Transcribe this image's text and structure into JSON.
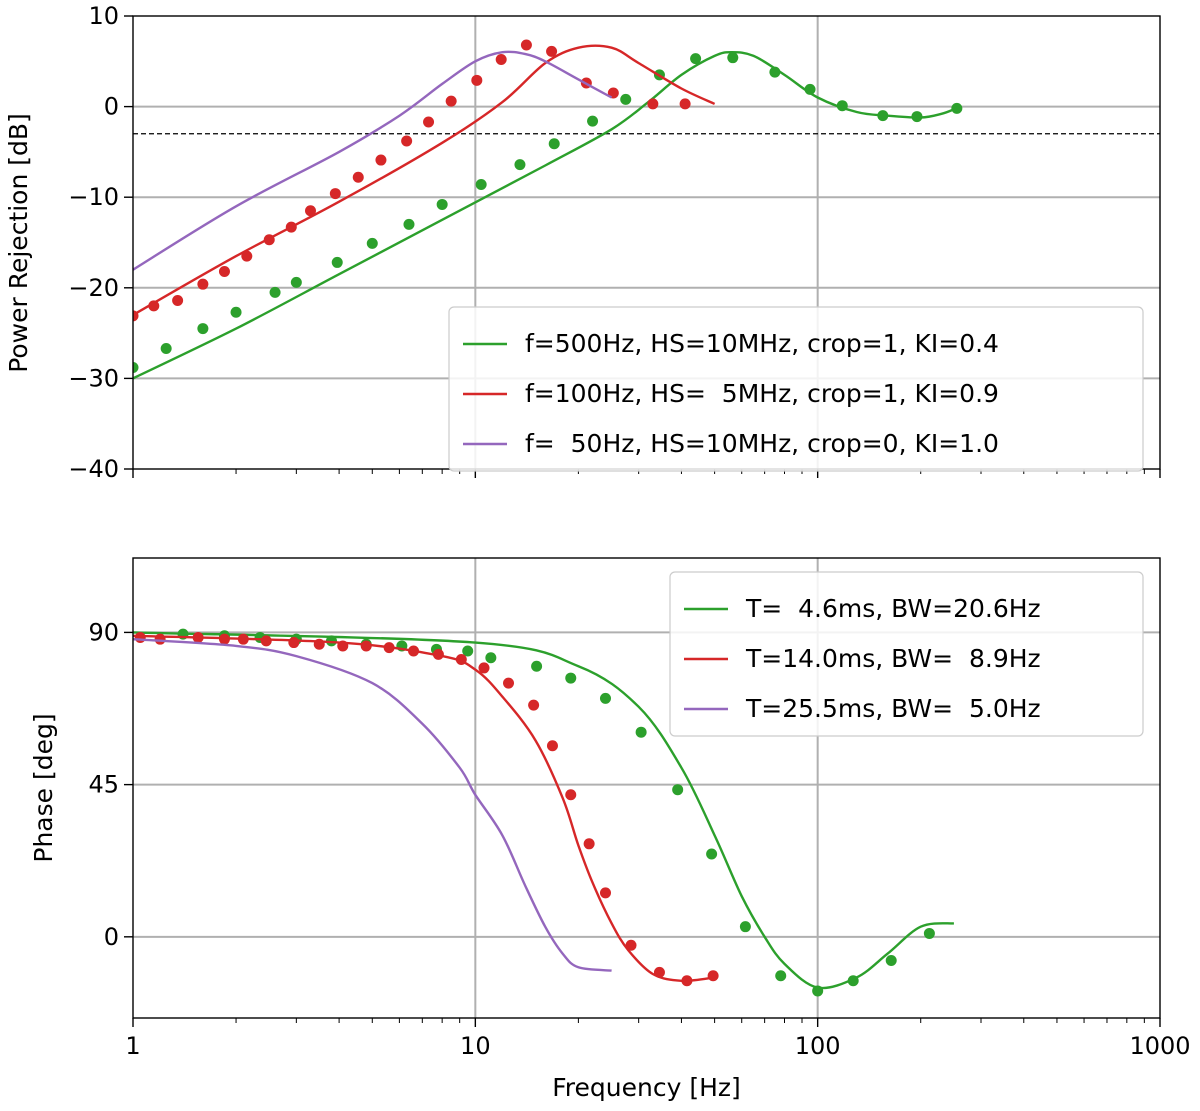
{
  "chart_data": [
    {
      "type": "line",
      "panel": "top",
      "title": "",
      "xlabel": "",
      "ylabel": "Power Rejection [dB]",
      "xscale": "log",
      "xlim": [
        1,
        1000
      ],
      "ylim": [
        -40,
        10
      ],
      "yticks": [
        10,
        0,
        -10,
        -20,
        -30,
        -40
      ],
      "ytick_labels": [
        "10",
        "0",
        "−10",
        "−20",
        "−30",
        "−40"
      ],
      "grid": true,
      "legend_position": "lower-right",
      "reference_line": {
        "y": -3,
        "style": "dashed",
        "color": "#000000"
      },
      "series": [
        {
          "name": "f=500Hz, HS=10MHz, crop=1, KI=0.4",
          "color": "#2ca02c",
          "line_x": [
            1,
            2,
            4,
            8,
            16,
            25,
            32,
            40,
            50,
            56,
            65,
            80,
            100,
            130,
            160,
            200,
            230,
            250
          ],
          "line_y": [
            -30,
            -24.5,
            -18.5,
            -12.5,
            -6.5,
            -2.5,
            0.5,
            3.5,
            5.6,
            6,
            5.6,
            3.5,
            1,
            -0.6,
            -1,
            -1.2,
            -0.8,
            -0.3
          ],
          "points_x": [
            1.0,
            1.25,
            1.6,
            2.0,
            2.6,
            3.0,
            3.95,
            5.0,
            6.4,
            8.0,
            10.4,
            13.5,
            17.0,
            22.0,
            27.5,
            34.5,
            44.0,
            56.5,
            75.0,
            95.0,
            118.0,
            155.0,
            195.0,
            255.0
          ],
          "points_y": [
            -28.8,
            -26.7,
            -24.5,
            -22.7,
            -20.5,
            -19.4,
            -17.2,
            -15.1,
            -13.0,
            -10.8,
            -8.6,
            -6.4,
            -4.1,
            -1.6,
            0.8,
            3.5,
            5.3,
            5.4,
            3.8,
            1.9,
            0.1,
            -1.0,
            -1.1,
            -0.2
          ]
        },
        {
          "name": "f=100Hz, HS=  5MHz, crop=1, KI=0.9",
          "color": "#d62728",
          "line_x": [
            1,
            2,
            4,
            8,
            12,
            16,
            20,
            25,
            30,
            40,
            50
          ],
          "line_y": [
            -23,
            -16.5,
            -10.5,
            -4,
            0.5,
            4.8,
            6.5,
            6.5,
            4.8,
            2,
            0.3
          ],
          "points_x": [
            1.0,
            1.15,
            1.35,
            1.6,
            1.85,
            2.15,
            2.5,
            2.9,
            3.3,
            3.9,
            4.55,
            5.3,
            6.3,
            7.3,
            8.5,
            10.1,
            11.9,
            14.1,
            16.7,
            21.1,
            25.3,
            33.0,
            41.0
          ],
          "points_y": [
            -23.1,
            -22.0,
            -21.4,
            -19.6,
            -18.2,
            -16.5,
            -14.7,
            -13.3,
            -11.5,
            -9.6,
            -7.8,
            -5.9,
            -3.8,
            -1.7,
            0.6,
            2.9,
            5.2,
            6.8,
            6.1,
            2.6,
            1.5,
            0.3,
            0.3
          ],
          "points_x_note": "",
          "points_y_note": ""
        },
        {
          "name": "f=  50Hz, HS=10MHz, crop=0, KI=1.0",
          "color": "#9467bd",
          "line_x": [
            1,
            2,
            4,
            6,
            8,
            10,
            12,
            14,
            16,
            20,
            25
          ],
          "line_y": [
            -18,
            -11,
            -5,
            -1,
            2.5,
            5,
            6,
            5.8,
            5,
            3,
            1
          ]
        }
      ]
    },
    {
      "type": "line",
      "panel": "bottom",
      "title": "",
      "xlabel": "Frequency [Hz]",
      "ylabel": "Phase [deg]",
      "xscale": "log",
      "xlim": [
        1,
        1000
      ],
      "ylim": [
        -24,
        112
      ],
      "yticks": [
        90,
        45,
        0
      ],
      "ytick_labels": [
        "90",
        "45",
        "0"
      ],
      "xticks": [
        1,
        10,
        100,
        1000
      ],
      "xtick_labels": [
        "1",
        "10",
        "100",
        "1000"
      ],
      "grid": true,
      "legend_position": "upper-right",
      "series": [
        {
          "name": "T=  4.6ms, BW=20.6Hz",
          "color": "#2ca02c",
          "line_x": [
            1,
            10,
            20,
            30,
            40,
            50,
            60,
            70,
            80,
            100,
            130,
            160,
            200,
            250
          ],
          "line_y": [
            90,
            87,
            80,
            68,
            50,
            30,
            12,
            0,
            -8,
            -15,
            -12,
            -5,
            3,
            4
          ],
          "points_x": [
            1.4,
            1.85,
            2.35,
            3.0,
            3.8,
            4.8,
            6.1,
            7.7,
            9.5,
            11.1,
            15.1,
            19.0,
            24.0,
            30.5,
            39.0,
            49.0,
            61.5,
            78.0,
            100.0,
            127.0,
            164.0,
            212.0
          ],
          "points_y": [
            89.5,
            89.0,
            88.5,
            88.0,
            87.5,
            86.5,
            86.0,
            85.0,
            84.5,
            82.5,
            80.0,
            76.5,
            70.5,
            60.5,
            43.5,
            24.5,
            3.0,
            -11.5,
            -16.0,
            -13.0,
            -7.0,
            1.0
          ]
        },
        {
          "name": "T=14.0ms, BW=  8.9Hz",
          "color": "#d62728",
          "line_x": [
            1,
            4,
            8,
            10,
            12,
            15,
            18,
            20,
            22,
            25,
            28,
            33,
            40,
            50
          ],
          "line_y": [
            89,
            87,
            83,
            79,
            71,
            58,
            41,
            27,
            16,
            4,
            -4,
            -11,
            -13,
            -12
          ],
          "points_x": [
            1.05,
            1.2,
            1.55,
            1.85,
            2.1,
            2.45,
            2.95,
            3.5,
            4.1,
            4.8,
            5.6,
            6.6,
            7.8,
            9.1,
            10.6,
            12.5,
            14.8,
            16.8,
            19.0,
            21.5,
            24.0,
            28.5,
            34.5,
            41.5,
            49.5
          ],
          "points_y": [
            88.5,
            88.0,
            88.5,
            88.0,
            88.0,
            87.5,
            87.0,
            86.5,
            86.0,
            86.0,
            85.5,
            84.5,
            83.5,
            82.0,
            79.5,
            75.0,
            68.5,
            56.5,
            42.0,
            27.5,
            13.0,
            -2.5,
            -10.5,
            -13.0,
            -11.5
          ]
        },
        {
          "name": "T=25.5ms, BW=  5.0Hz",
          "color": "#9467bd",
          "line_x": [
            1,
            2,
            3,
            5,
            7,
            9,
            10,
            12,
            14,
            16,
            18,
            20,
            25
          ],
          "line_y": [
            88,
            86,
            83,
            75,
            63,
            50,
            42,
            30,
            15,
            3,
            -5,
            -9,
            -10
          ]
        }
      ]
    }
  ]
}
